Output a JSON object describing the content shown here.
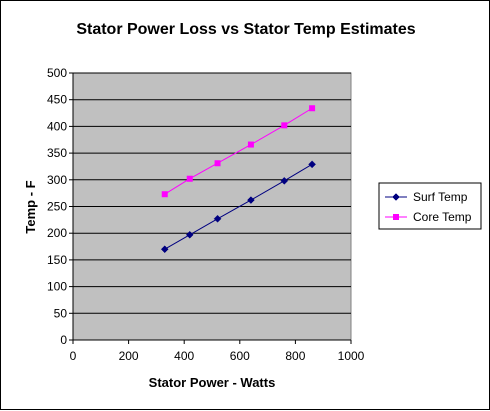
{
  "chart_data": {
    "type": "line",
    "title": "Stator Power Loss vs Stator Temp Estimates",
    "xlabel": "Stator Power - Watts",
    "ylabel": "Temp - F",
    "xlim": [
      0,
      1000
    ],
    "ylim": [
      0,
      500
    ],
    "x_ticks": [
      0,
      200,
      400,
      600,
      800,
      1000
    ],
    "y_ticks": [
      0,
      50,
      100,
      150,
      200,
      250,
      300,
      350,
      400,
      450,
      500
    ],
    "grid": true,
    "plot_background": "#c0c0c0",
    "legend_position": "right",
    "series": [
      {
        "name": "Surf Temp",
        "color": "#000080",
        "marker": "diamond",
        "x": [
          330,
          420,
          520,
          640,
          760,
          860
        ],
        "y": [
          170,
          197,
          227,
          262,
          298,
          329
        ]
      },
      {
        "name": "Core Temp",
        "color": "#ff00ff",
        "marker": "square",
        "x": [
          330,
          420,
          520,
          640,
          760,
          860
        ],
        "y": [
          273,
          302,
          331,
          366,
          402,
          434
        ]
      }
    ]
  }
}
